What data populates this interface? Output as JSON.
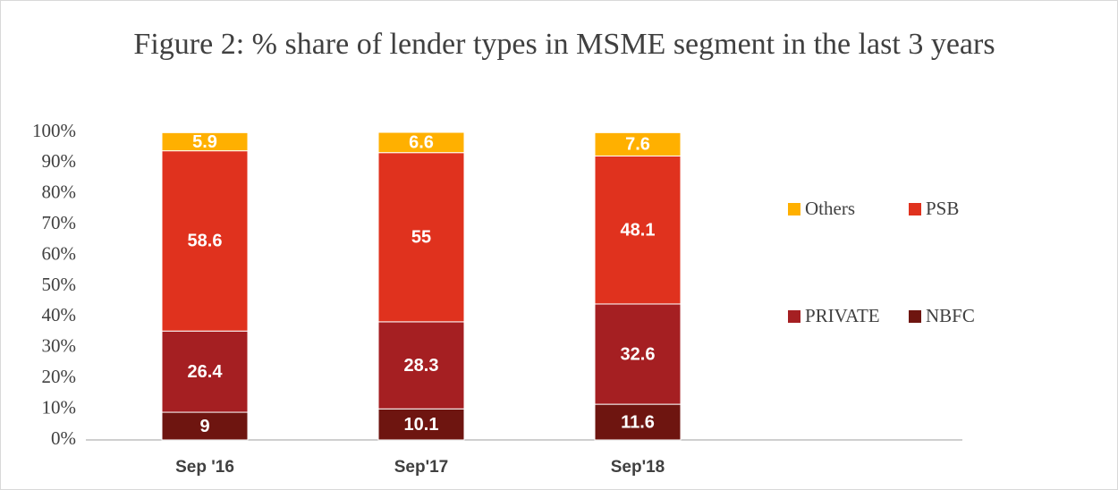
{
  "chart_data": {
    "type": "stacked_bar",
    "title": "Figure 2: % share of lender types in MSME segment in the last 3 years",
    "categories": [
      "Sep '16",
      "Sep'17",
      "Sep'18"
    ],
    "series": [
      {
        "name": "NBFC",
        "color": "#6e1510",
        "values": [
          9,
          10.1,
          11.6
        ]
      },
      {
        "name": "PRIVATE",
        "color": "#a51f22",
        "values": [
          26.4,
          28.3,
          32.6
        ]
      },
      {
        "name": "PSB",
        "color": "#e0321e",
        "values": [
          58.6,
          55,
          48.1
        ]
      },
      {
        "name": "Others",
        "color": "#ffb000",
        "values": [
          5.9,
          6.6,
          7.6
        ]
      }
    ],
    "ylim": [
      0,
      100
    ],
    "yticks": [
      {
        "value": 0,
        "label": "0%"
      },
      {
        "value": 10,
        "label": "10%"
      },
      {
        "value": 20,
        "label": "20%"
      },
      {
        "value": 30,
        "label": "30%"
      },
      {
        "value": 40,
        "label": "40%"
      },
      {
        "value": 50,
        "label": "50%"
      },
      {
        "value": 60,
        "label": "60%"
      },
      {
        "value": 70,
        "label": "70%"
      },
      {
        "value": 80,
        "label": "80%"
      },
      {
        "value": 90,
        "label": "90%"
      },
      {
        "value": 100,
        "label": "100%"
      }
    ],
    "grid": false,
    "legend": "right"
  }
}
